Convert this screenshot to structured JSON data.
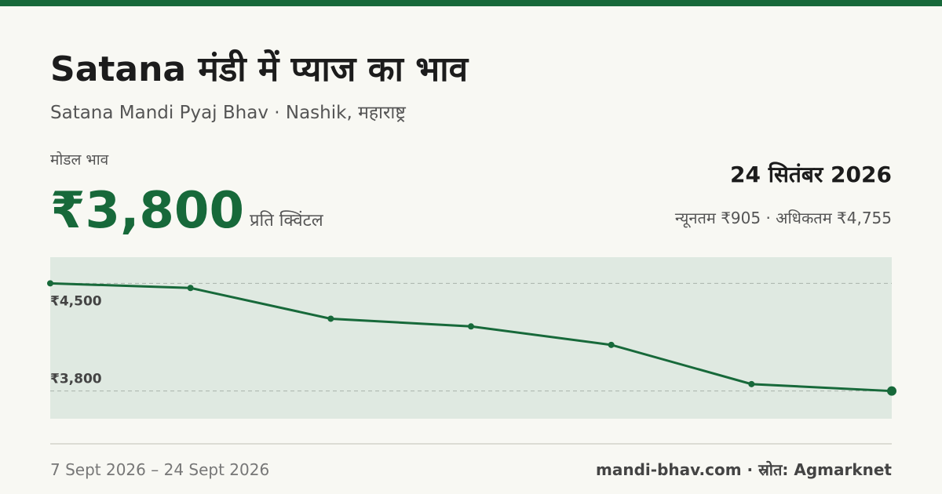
{
  "title": "Satana मंडी में प्याज का भाव",
  "subtitle": "Satana Mandi Pyaj Bhav · Nashik, महाराष्ट्र",
  "price_label": "मोडल भाव",
  "price": "₹3,800",
  "price_unit": "प्रति क्विंटल",
  "date": "24 सितंबर 2026",
  "range": "न्यूनतम ₹905 · अधिकतम ₹4,755",
  "footer_left": "7 Sept 2026 – 24 Sept 2026",
  "footer_right": "mandi-bhav.com · स्रोत: Agmarknet",
  "chart_data": {
    "type": "line",
    "categories": [
      null,
      null,
      null,
      null,
      null,
      null,
      null
    ],
    "values": [
      4500,
      4470,
      4270,
      4220,
      4100,
      3845,
      3800
    ],
    "color": "#17693a",
    "ylim": [
      3620,
      4670
    ],
    "yticks": [
      {
        "value": 4500,
        "label": "₹4,500"
      },
      {
        "value": 3800,
        "label": "₹3,800"
      }
    ],
    "grid": true
  }
}
